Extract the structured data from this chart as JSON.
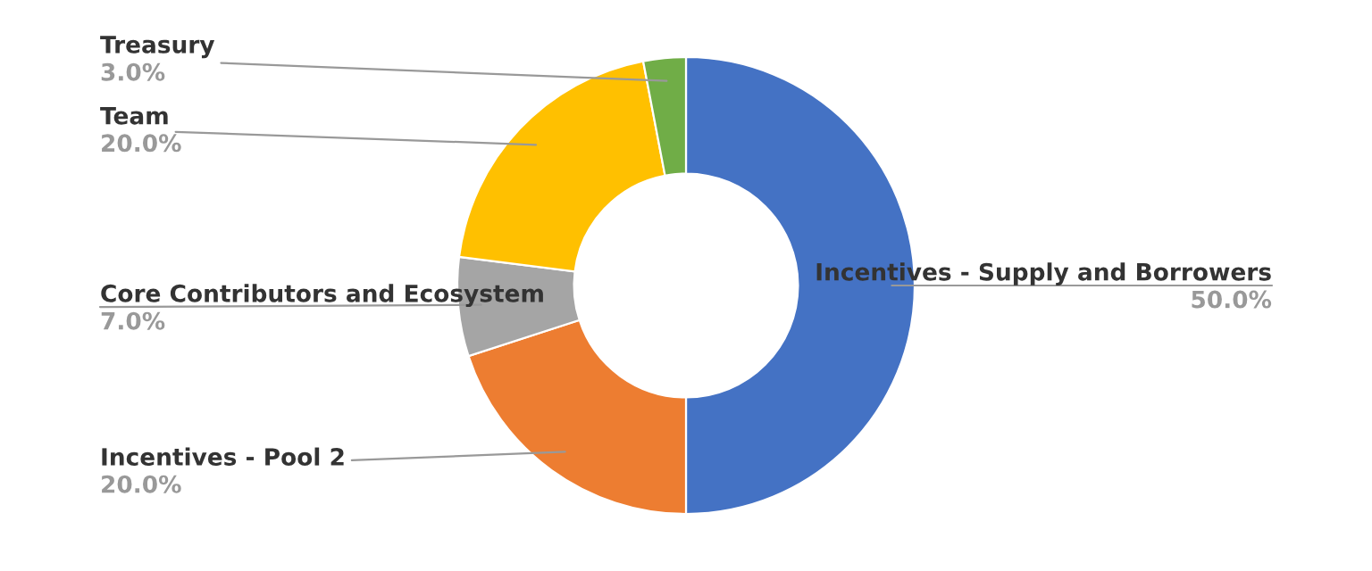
{
  "chart_data": {
    "type": "donut",
    "categories": [
      "Incentives - Supply and Borrowers",
      "Incentives - Pool 2",
      "Core Contributors and Ecosystem",
      "Team",
      "Treasury"
    ],
    "values": [
      50.0,
      20.0,
      7.0,
      20.0,
      3.0
    ],
    "colors": [
      "#4472c4",
      "#ed7d31",
      "#a5a5a5",
      "#ffc000",
      "#70ad47"
    ],
    "value_labels": [
      "50.0%",
      "20.0%",
      "7.0%",
      "20.0%",
      "3.0%"
    ],
    "legend": false
  }
}
